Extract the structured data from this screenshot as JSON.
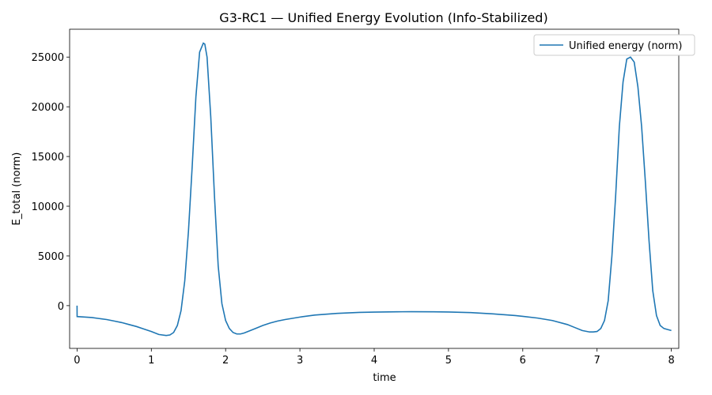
{
  "chart_data": {
    "type": "line",
    "title": "G3-RC1 — Unified Energy Evolution (Info-Stabilized)",
    "xlabel": "time",
    "ylabel": "E_total (norm)",
    "xlim": [
      -0.1,
      8.1
    ],
    "ylim": [
      -4300,
      27800
    ],
    "xticks": [
      0,
      1,
      2,
      3,
      4,
      5,
      6,
      7,
      8
    ],
    "yticks": [
      0,
      5000,
      10000,
      15000,
      20000,
      25000
    ],
    "grid": false,
    "legend": "top-right",
    "series": [
      {
        "name": "Unified energy (norm)",
        "color": "#1f77b4",
        "x": [
          0,
          0.001,
          0.1,
          0.2,
          0.3,
          0.4,
          0.5,
          0.6,
          0.7,
          0.8,
          0.9,
          1.0,
          1.1,
          1.2,
          1.25,
          1.3,
          1.35,
          1.4,
          1.45,
          1.5,
          1.55,
          1.6,
          1.65,
          1.7,
          1.72,
          1.75,
          1.8,
          1.85,
          1.9,
          1.95,
          2.0,
          2.05,
          2.1,
          2.15,
          2.2,
          2.25,
          2.3,
          2.4,
          2.5,
          2.6,
          2.7,
          2.8,
          3.0,
          3.2,
          3.5,
          3.8,
          4.0,
          4.3,
          4.5,
          4.8,
          5.0,
          5.3,
          5.6,
          5.9,
          6.0,
          6.2,
          6.4,
          6.6,
          6.7,
          6.8,
          6.9,
          6.95,
          7.0,
          7.05,
          7.1,
          7.15,
          7.2,
          7.25,
          7.3,
          7.35,
          7.4,
          7.45,
          7.5,
          7.55,
          7.6,
          7.65,
          7.7,
          7.75,
          7.8,
          7.85,
          7.9,
          7.95,
          8.0
        ],
        "y": [
          0,
          -1100,
          -1150,
          -1200,
          -1300,
          -1400,
          -1550,
          -1700,
          -1900,
          -2100,
          -2350,
          -2600,
          -2900,
          -3000,
          -2950,
          -2700,
          -2000,
          -500,
          2500,
          7500,
          14000,
          21000,
          25500,
          26400,
          26300,
          25000,
          19000,
          11000,
          4000,
          200,
          -1500,
          -2300,
          -2700,
          -2850,
          -2850,
          -2750,
          -2600,
          -2300,
          -2000,
          -1750,
          -1550,
          -1400,
          -1150,
          -950,
          -780,
          -680,
          -650,
          -620,
          -610,
          -620,
          -640,
          -700,
          -830,
          -1000,
          -1080,
          -1250,
          -1500,
          -1900,
          -2200,
          -2500,
          -2650,
          -2650,
          -2600,
          -2300,
          -1500,
          500,
          5000,
          11000,
          18000,
          22500,
          24800,
          25000,
          24500,
          22000,
          18000,
          12500,
          6500,
          1500,
          -1000,
          -2000,
          -2300,
          -2400,
          -2500
        ]
      }
    ]
  }
}
